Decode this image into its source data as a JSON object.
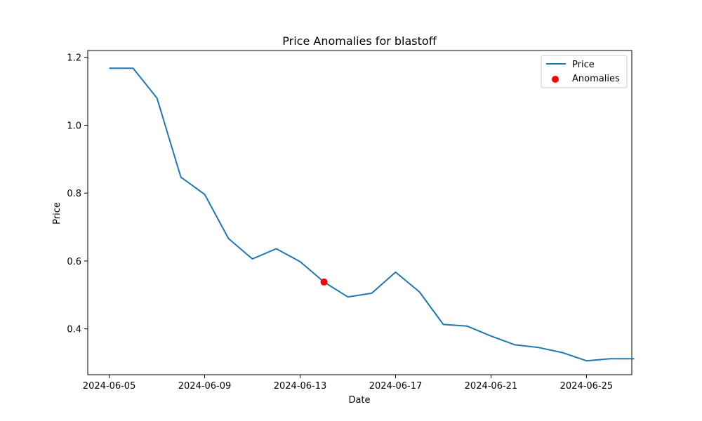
{
  "chart_data": {
    "type": "line",
    "title": "Price Anomalies for blastoff",
    "xlabel": "Date",
    "ylabel": "Price",
    "grid": false,
    "legend_position": "top-right",
    "x_ticks": [
      "2024-06-05",
      "2024-06-09",
      "2024-06-13",
      "2024-06-17",
      "2024-06-21",
      "2024-06-25"
    ],
    "y_ticks": [
      "0.4",
      "0.6",
      "0.8",
      "1.0",
      "1.2"
    ],
    "xlim": [
      "2024-06-04",
      "2024-06-27"
    ],
    "ylim": [
      0.265,
      1.22
    ],
    "series": [
      {
        "name": "Price",
        "kind": "line",
        "color": "#1f77b4",
        "x": [
          "2024-06-05",
          "2024-06-06",
          "2024-06-07",
          "2024-06-08",
          "2024-06-09",
          "2024-06-10",
          "2024-06-11",
          "2024-06-12",
          "2024-06-13",
          "2024-06-14",
          "2024-06-15",
          "2024-06-16",
          "2024-06-17",
          "2024-06-18",
          "2024-06-19",
          "2024-06-20",
          "2024-06-21",
          "2024-06-22",
          "2024-06-23",
          "2024-06-24",
          "2024-06-25",
          "2024-06-26",
          "2024-06-27"
        ],
        "y": [
          1.168,
          1.168,
          1.08,
          0.847,
          0.796,
          0.666,
          0.606,
          0.636,
          0.598,
          0.538,
          0.494,
          0.505,
          0.567,
          0.509,
          0.413,
          0.408,
          0.379,
          0.353,
          0.345,
          0.33,
          0.306,
          0.312,
          0.312
        ]
      },
      {
        "name": "Anomalies",
        "kind": "scatter",
        "color": "#ff0000",
        "x": [
          "2024-06-14"
        ],
        "y": [
          0.538
        ]
      }
    ]
  }
}
